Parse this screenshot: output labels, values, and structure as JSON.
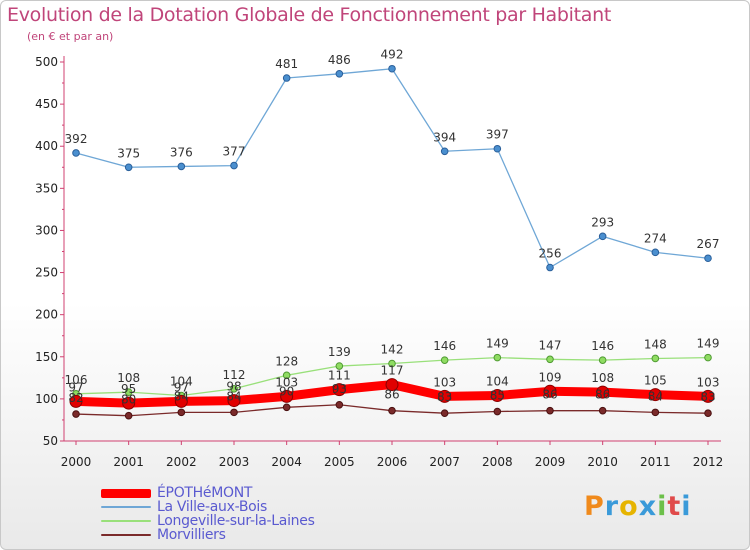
{
  "title": "Evolution de la Dotation Globale de Fonctionnement par Habitant",
  "subtitle": "(en € et par an)",
  "brand": "Proxiti",
  "chart_data": {
    "type": "line",
    "title": "Evolution de la Dotation Globale de Fonctionnement par Habitant",
    "subtitle": "(en € et par an)",
    "x": [
      "2000",
      "2001",
      "2002",
      "2003",
      "2004",
      "2005",
      "2006",
      "2007",
      "2008",
      "2009",
      "2010",
      "2011",
      "2012"
    ],
    "ylim": [
      50,
      500
    ],
    "yticks": [
      50,
      100,
      150,
      200,
      250,
      300,
      350,
      400,
      450,
      500
    ],
    "grid": false,
    "legend_position": "bottom-left",
    "series": [
      {
        "name": "ÉPOTHéMONT",
        "color": "#ff0000",
        "values": [
          97,
          95,
          97,
          98,
          103,
          111,
          117,
          103,
          104,
          109,
          108,
          105,
          103
        ]
      },
      {
        "name": "La Ville-aux-Bois",
        "color": "#6fa7d6",
        "values": [
          392,
          375,
          376,
          377,
          481,
          486,
          492,
          394,
          397,
          256,
          293,
          274,
          267
        ]
      },
      {
        "name": "Longeville-sur-la-Laines",
        "color": "#99e07a",
        "values": [
          106,
          108,
          104,
          112,
          128,
          139,
          142,
          146,
          149,
          147,
          146,
          148,
          149
        ]
      },
      {
        "name": "Morvilliers",
        "color": "#7a2a2a",
        "values": [
          82,
          80,
          84,
          84,
          90,
          93,
          86,
          83,
          85,
          86,
          86,
          84,
          83
        ]
      }
    ]
  }
}
